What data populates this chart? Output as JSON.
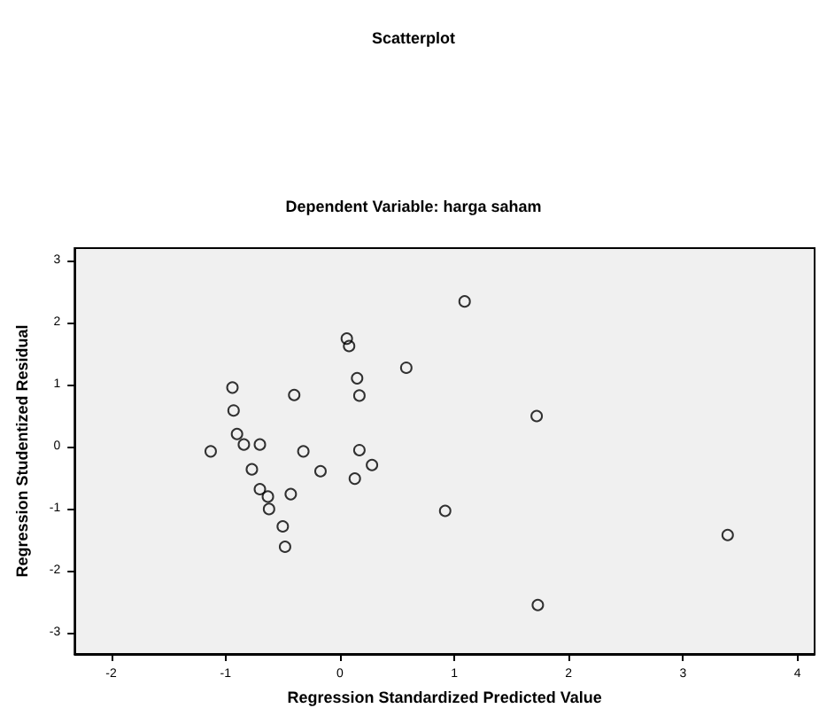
{
  "chart_data": {
    "type": "scatter",
    "title": "Scatterplot",
    "subtitle": "Dependent Variable: harga saham",
    "xlabel": "Regression Standardized Predicted Value",
    "ylabel": "Regression Studentized Residual",
    "x": [
      1.09,
      0.06,
      0.08,
      0.58,
      0.15,
      -0.94,
      -0.4,
      0.17,
      1.72,
      -0.93,
      -0.9,
      -0.84,
      -0.7,
      -1.13,
      -0.32,
      0.17,
      0.28,
      -0.77,
      -0.17,
      0.13,
      -0.7,
      -0.63,
      -0.43,
      -0.62,
      0.92,
      -0.5,
      -0.48,
      3.39,
      1.73
    ],
    "values": [
      2.34,
      1.74,
      1.62,
      1.27,
      1.1,
      0.95,
      0.83,
      0.82,
      0.49,
      0.58,
      0.2,
      0.03,
      0.03,
      -0.08,
      -0.08,
      -0.06,
      -0.3,
      -0.37,
      -0.4,
      -0.52,
      -0.69,
      -0.81,
      -0.77,
      -1.01,
      -1.04,
      -1.29,
      -1.62,
      -1.43,
      -2.56
    ],
    "color": "#000000",
    "marker": "circle",
    "grid": false,
    "xlim": [
      -2.32,
      4.15
    ],
    "xticks": [
      -2,
      -1,
      0,
      1,
      2,
      3,
      4
    ],
    "ylim": [
      -3.35,
      3.2
    ],
    "yticks": [
      -3,
      -2,
      -1,
      0,
      1,
      2,
      3
    ]
  }
}
